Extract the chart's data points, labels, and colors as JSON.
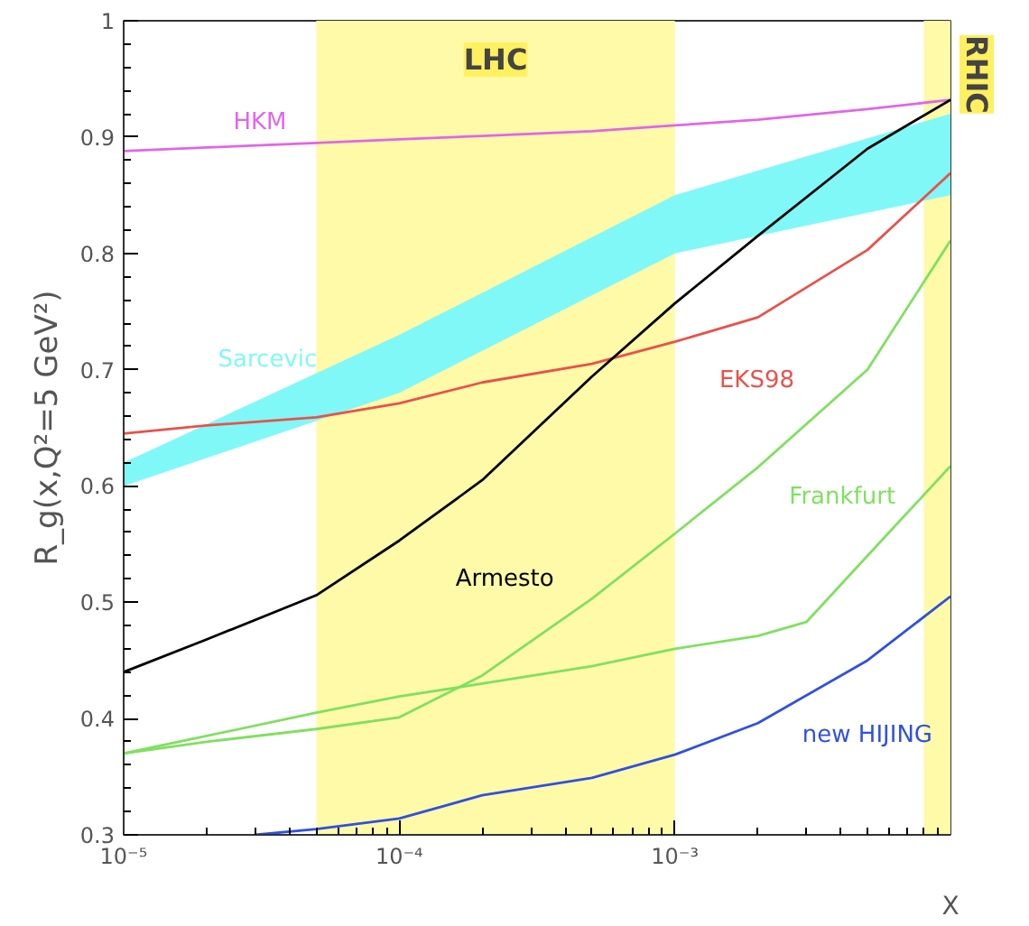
{
  "chart_data": {
    "type": "line",
    "xlabel": "X",
    "ylabel": "R_g(x,Q²=5 GeV²)",
    "log": "x",
    "grid": false,
    "xlim": [
      1e-05,
      0.01
    ],
    "ylim": [
      0.3,
      1
    ],
    "xticks": [
      {
        "value": 1e-05,
        "label": "10⁻⁵"
      },
      {
        "value": 0.0001,
        "label": "10⁻⁴"
      },
      {
        "value": 0.001,
        "label": "10⁻³"
      }
    ],
    "yticks": [
      0.3,
      0.4,
      0.5,
      0.6,
      0.7,
      0.8,
      0.9,
      1
    ],
    "bands": [
      {
        "axis": "x",
        "from": 5e-05,
        "to": 0.001,
        "label": "LHC",
        "color": "#fffaa8"
      },
      {
        "axis": "x",
        "from": 0.008,
        "to": 0.01,
        "label": "RHIC",
        "color": "#fffaa8"
      }
    ],
    "x": [
      1e-05,
      2e-05,
      5e-05,
      0.0001,
      0.0002,
      0.0005,
      0.001,
      0.002,
      0.005,
      0.01
    ],
    "series": [
      {
        "name": "HKM",
        "color": "#e066e8",
        "values": [
          0.888,
          0.891,
          0.895,
          0.898,
          0.901,
          0.905,
          0.91,
          0.915,
          0.924,
          0.932
        ]
      },
      {
        "name": "Sarcevic",
        "type": "area",
        "color": "#80f8f8",
        "x": [
          1e-05,
          0.0001,
          0.001,
          0.01
        ],
        "values": [
          null,
          null,
          null,
          null
        ],
        "lower": [
          0.6,
          0.68,
          0.8,
          0.85
        ],
        "upper": [
          0.62,
          0.73,
          0.85,
          0.92
        ]
      },
      {
        "name": "EKS98",
        "color": "#e8524a",
        "values": [
          0.645,
          0.652,
          0.659,
          0.671,
          0.689,
          0.705,
          0.724,
          0.745,
          0.803,
          0.869
        ]
      },
      {
        "name": "Armesto",
        "color": "#000000",
        "values": [
          0.44,
          0.468,
          0.506,
          0.553,
          0.605,
          0.694,
          0.757,
          0.815,
          0.89,
          0.932
        ]
      },
      {
        "name": "Frankfurt",
        "color": "#80e060",
        "values": [
          0.37,
          0.38,
          0.391,
          0.401,
          0.437,
          0.503,
          0.559,
          0.616,
          0.7,
          0.811
        ]
      },
      {
        "color": "#80e060",
        "x": [
          1e-05,
          5e-05,
          0.0001,
          0.0002,
          0.0005,
          0.001,
          0.002,
          0.003,
          0.005,
          0.01
        ],
        "values": [
          0.37,
          0.405,
          0.419,
          0.43,
          0.445,
          0.46,
          0.471,
          0.483,
          0.54,
          0.617
        ]
      },
      {
        "name": "new HIJING",
        "color": "#3050e0",
        "x": [
          3e-05,
          5e-05,
          0.0001,
          0.0002,
          0.0005,
          0.001,
          0.002,
          0.005,
          0.01
        ],
        "values": [
          0.3,
          0.305,
          0.314,
          0.334,
          0.349,
          0.369,
          0.396,
          0.45,
          0.505
        ]
      }
    ]
  }
}
